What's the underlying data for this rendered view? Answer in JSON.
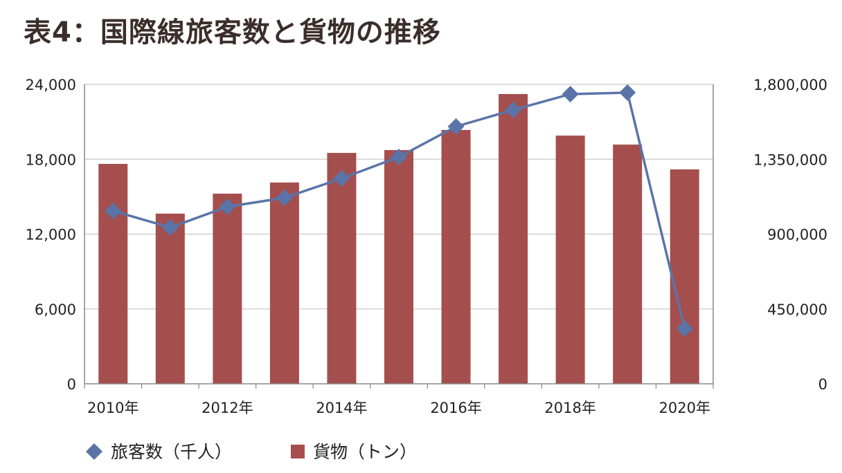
{
  "chart_data": {
    "type": "bar+line",
    "title": "表4：国際線旅客数と貨物の推移",
    "categories": [
      "2010年",
      "2011年",
      "2012年",
      "2013年",
      "2014年",
      "2015年",
      "2016年",
      "2017年",
      "2018年",
      "2019年",
      "2020年"
    ],
    "x_tick_labels": [
      "2010年",
      "2012年",
      "2014年",
      "2016年",
      "2018年",
      "2020年"
    ],
    "left_axis": {
      "ylim": [
        0,
        24000
      ],
      "ticks": [
        "0",
        "6,000",
        "12,000",
        "18,000",
        "24,000"
      ]
    },
    "right_axis": {
      "ylim": [
        0,
        1800000
      ],
      "ticks": [
        "0",
        "450,000",
        "900,000",
        "1,350,000",
        "1,800,000"
      ]
    },
    "grid": true,
    "legend_position": "bottom-left",
    "series": [
      {
        "name": "旅客数（千人）",
        "type": "line",
        "axis": "left",
        "color": "#5a74a8",
        "marker": "diamond",
        "values": [
          13860,
          12530,
          14190,
          14910,
          16460,
          18180,
          20620,
          21950,
          23220,
          23340,
          4430
        ]
      },
      {
        "name": "貨物（トン）",
        "type": "bar",
        "axis": "right",
        "color": "#a54e4e",
        "values": [
          1322000,
          1023000,
          1143000,
          1210000,
          1388000,
          1405000,
          1526000,
          1742000,
          1492000,
          1438000,
          1289000
        ]
      }
    ]
  }
}
